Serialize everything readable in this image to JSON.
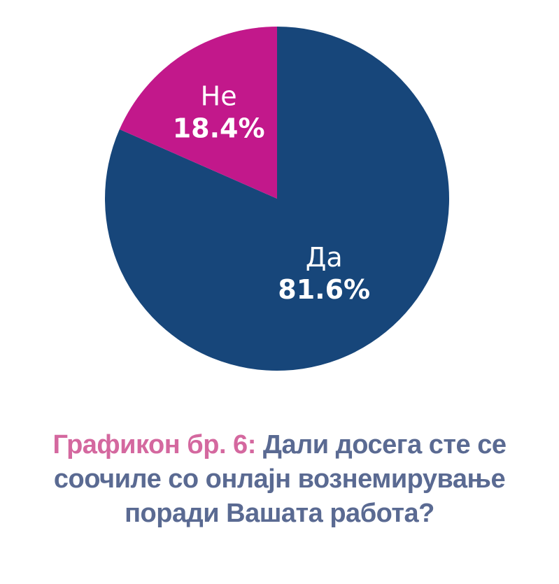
{
  "chart_data": {
    "type": "pie",
    "title": "Дали досега сте се соочиле со онлајн вознемирување поради Вашата работа?",
    "slices": [
      {
        "label": "Да",
        "value": 81.6,
        "value_label": "81.6%",
        "color": "#17467a"
      },
      {
        "label": "Не",
        "value": 18.4,
        "value_label": "18.4%",
        "color": "#c2188b"
      }
    ],
    "start_angle_deg": 0,
    "direction": "clockwise"
  },
  "caption": {
    "prefix": "Графикон бр. 6:",
    "line1": "Дали досега сте се",
    "line2": "соочиле со онлајн вознемирување",
    "line3": "поради Вашата работа?"
  },
  "colors": {
    "caption_prefix": "#d4689f",
    "caption_text": "#5a6a92"
  }
}
